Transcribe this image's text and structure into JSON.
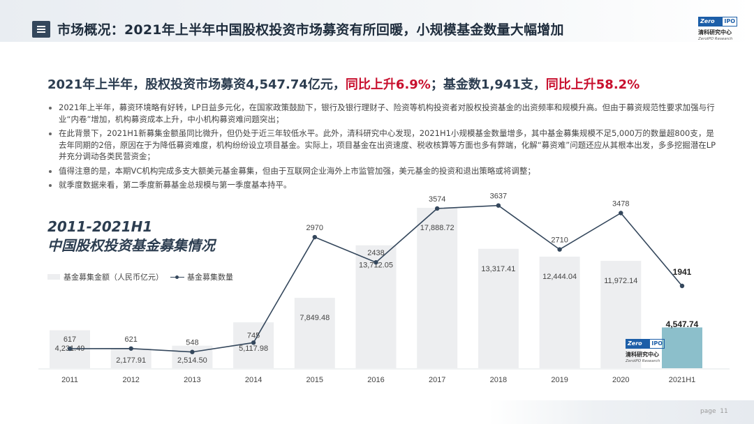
{
  "header": {
    "title": "市场概况：2021年上半年中国股权投资市场募资有所回暖，小规模基金数量大幅增加",
    "logo": {
      "box_left": "Zero",
      "box_right": "IPO",
      "cn": "清科研究中心",
      "en": "ZeroIPO Research"
    }
  },
  "headline": {
    "part1": "2021年上半年，股权投资市场募资4,547.74亿元，",
    "part2": "同比上升6.9%",
    "part3": "；基金数1,941支，",
    "part4": "同比上升58.2%",
    "accent_color": "#c8102e"
  },
  "bullets": [
    "2021年上半年，募资环境略有好转，LP日益多元化，在国家政策鼓励下，银行及银行理财子、险资等机构投资者对股权投资基金的出资频率和规模升高。但由于募资规范性要求加强与行业“内卷”增加，机构募资成本上升，中小机构募资难问题突出；",
    "在此背景下，2021H1新募集金额虽同比微升，但仍处于近三年较低水平。此外，清科研究中心发现，2021H1小规模基金数量增多，其中基金募集规模不足5,000万的数量超800支，是去年同期的2倍，原因在于为降低募资难度，机构纷纷设立项目基金。实际上，项目基金在出资速度、税收核算等方面也多有弊端，化解“募资难”问题还应从其根本出发，多多挖掘潜在LP并充分调动各类民营资金；",
    "值得注意的是，本期VC机构完成多支大额美元基金募集，但由于互联网企业海外上市监管加强，美元基金的投资和退出策略或将调整；",
    "就季度数据来看，第二季度新募基金总规模与第一季度基本持平。"
  ],
  "chart_data": {
    "type": "bar+line",
    "title_line1": "2011-2021H1",
    "title_line2": "中国股权投资基金募集情况",
    "categories": [
      "2011",
      "2012",
      "2013",
      "2014",
      "2015",
      "2016",
      "2017",
      "2018",
      "2019",
      "2020",
      "2021H1"
    ],
    "series": [
      {
        "name": "基金募集金额（人民币亿元）",
        "type": "bar",
        "values": [
          4231.49,
          2177.91,
          2514.5,
          5117.98,
          7849.48,
          13712.05,
          17888.72,
          13317.41,
          12444.04,
          11972.14,
          4547.74
        ],
        "labels": [
          "4,231.49",
          "2,177.91",
          "2,514.50",
          "5,117.98",
          "7,849.48",
          "13,712.05",
          "17,888.72",
          "13,317.41",
          "12,444.04",
          "11,972.14",
          "4,547.74"
        ],
        "color": "#edeef0",
        "highlight_color": "#8cbfcb"
      },
      {
        "name": "基金募集数量",
        "type": "line",
        "values": [
          617,
          621,
          548,
          745,
          2970,
          2438,
          3574,
          3637,
          2710,
          3478,
          1941
        ],
        "color": "#34475c"
      }
    ],
    "legend_position": "top-left",
    "grid": false
  },
  "watermark_logo": {
    "box_left": "Zero",
    "box_right": "IPO",
    "cn": "清科研究中心",
    "en": "ZeroIPO Research"
  },
  "footer": {
    "page_label": "page",
    "page_number": "11"
  }
}
